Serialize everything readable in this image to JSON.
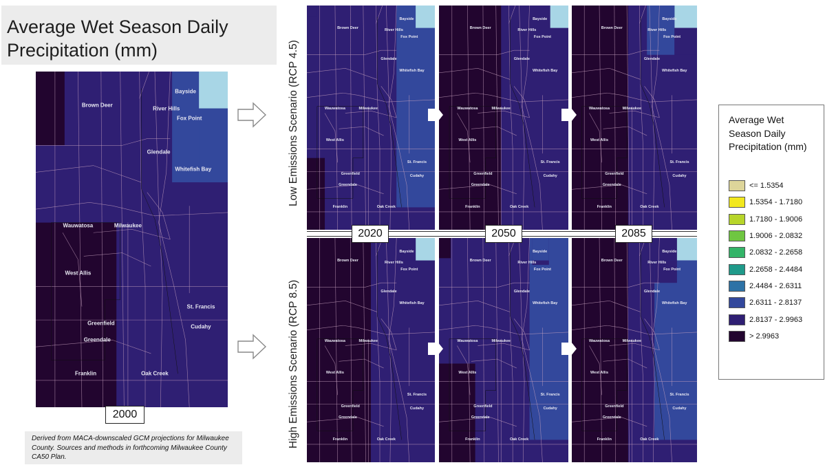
{
  "title": "Average Wet Season Daily Precipitation (mm)",
  "citation": "Derived from MACA-downscaled GCM projections for Milwaukee County. Sources and methods in forthcoming Milwaukee County CA50 Plan.",
  "scenarios": {
    "low": "Low Emissions Scenario (RCP 4.5)",
    "high": "High Emissions Scenario (RCP 8.5)"
  },
  "years": {
    "baseline": "2000",
    "y2020": "2020",
    "y2050": "2050",
    "y2085": "2085"
  },
  "place_names": {
    "brown_deer": "Brown Deer",
    "bayside": "Bayside",
    "river_hills": "River Hills",
    "fox_point": "Fox Point",
    "glendale": "Glendale",
    "whitefish_bay": "Whitefish Bay",
    "wauwatosa": "Wauwatosa",
    "milwaukee": "Milwaukee",
    "west_allis": "West Allis",
    "st_francis": "St. Francis",
    "cudahy": "Cudahy",
    "greenfield": "Greenfield",
    "greendale": "Greendale",
    "franklin": "Franklin",
    "oak_creek": "Oak Creek"
  },
  "legend": {
    "title": "Average Wet Season Daily Precipitation (mm)",
    "items": [
      {
        "label": "<= 1.5354",
        "color": "#ddd59a"
      },
      {
        "label": "1.5354 - 1.7180",
        "color": "#f2e81e"
      },
      {
        "label": "1.7180 - 1.9006",
        "color": "#b7d52a"
      },
      {
        "label": "1.9006 - 2.0832",
        "color": "#6fc641"
      },
      {
        "label": "2.0832 - 2.2658",
        "color": "#33b468"
      },
      {
        "label": "2.2658 - 2.4484",
        "color": "#1f9a8a"
      },
      {
        "label": "2.4484 - 2.6311",
        "color": "#2d72a6"
      },
      {
        "label": "2.6311 - 2.8137",
        "color": "#33489c"
      },
      {
        "label": "2.8137 - 2.9963",
        "color": "#2f1f73"
      },
      {
        "label": "> 2.9963",
        "color": "#22052f"
      }
    ]
  },
  "class_colors": {
    "dark": "#22052f",
    "mid": "#2f1f73",
    "blue": "#33489c",
    "light": "#a8d6e6"
  }
}
